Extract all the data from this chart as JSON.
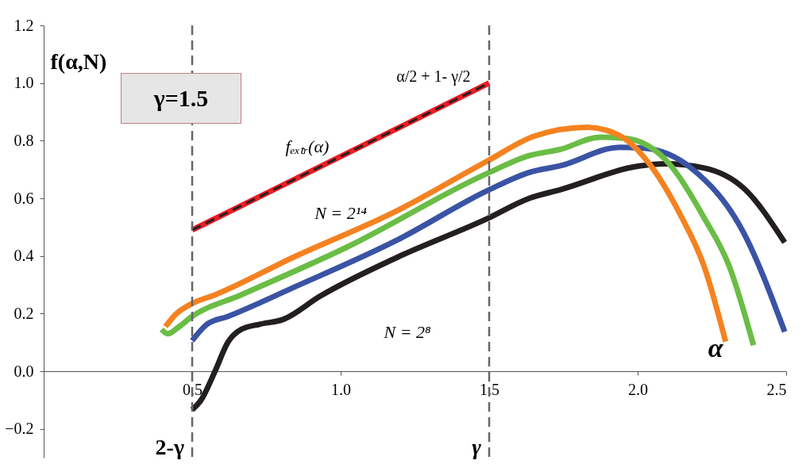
{
  "chart_data": {
    "type": "line",
    "ylabel": "f(α,N)",
    "xlabel": "α",
    "xlim": [
      0,
      2.5
    ],
    "ylim": [
      -0.3,
      1.2
    ],
    "xticks": [
      0.5,
      {
        "value": 1,
        "label": "1.0"
      },
      1.5,
      {
        "value": 2,
        "label": "2.0"
      },
      2.5
    ],
    "yticks": [
      {
        "value": -0.2,
        "label": "−0.2"
      },
      {
        "value": 0,
        "label": "0.0"
      },
      0.2,
      0.4,
      0.6,
      0.8,
      {
        "value": 1,
        "label": "1.0"
      },
      1.2
    ],
    "series": [
      {
        "color": "#231f20",
        "x": [
          0.5,
          0.53,
          0.577,
          0.62,
          0.665,
          0.727,
          0.807,
          0.93,
          1.19,
          1.495,
          1.635,
          1.74,
          2.005,
          2.09,
          2.225,
          2.357,
          2.495
        ],
        "values": [
          -0.134,
          -0.1,
          0,
          0.1,
          0.145,
          0.163,
          0.18,
          0.26,
          0.395,
          0.53,
          0.6,
          0.63,
          0.712,
          0.72,
          0.705,
          0.635,
          0.447
        ]
      },
      {
        "color": "#3a53a4",
        "x": [
          0.5,
          0.55,
          0.62,
          0.84,
          1.19,
          1.495,
          1.635,
          1.74,
          1.94,
          2.02,
          2.18,
          2.357,
          2.495
        ],
        "values": [
          0.106,
          0.163,
          0.19,
          0.29,
          0.455,
          0.627,
          0.69,
          0.713,
          0.777,
          0.774,
          0.705,
          0.48,
          0.137
        ]
      },
      {
        "color": "#6abd45",
        "x": [
          0.397,
          0.418,
          0.45,
          0.5,
          0.665,
          1.02,
          1.495,
          1.635,
          1.74,
          1.873,
          1.96,
          2.09,
          2.225,
          2.31,
          2.39
        ],
        "values": [
          0.145,
          0.13,
          0.15,
          0.19,
          0.265,
          0.43,
          0.687,
          0.748,
          0.77,
          0.812,
          0.808,
          0.738,
          0.53,
          0.36,
          0.09
        ]
      },
      {
        "color": "#f58220",
        "x": [
          0.41,
          0.444,
          0.5,
          0.577,
          0.84,
          1.19,
          1.495,
          1.653,
          1.83,
          1.935,
          2.05,
          2.14,
          2.225,
          2.296
        ],
        "values": [
          0.155,
          0.197,
          0.235,
          0.265,
          0.395,
          0.557,
          0.73,
          0.816,
          0.846,
          0.82,
          0.705,
          0.55,
          0.36,
          0.103
        ]
      },
      {
        "color": "#ed1c24",
        "x": [
          0.5,
          1.5
        ],
        "values": [
          0.49,
          1.0
        ]
      },
      {
        "color": "#231f20",
        "line_style": "dashed",
        "x": [
          0.5,
          1.5
        ],
        "values": [
          0.49,
          1.0
        ]
      }
    ],
    "ref_lines": [
      {
        "axis": "x",
        "value": 0.5,
        "label": "2-γ",
        "color": "#666666",
        "line_style": "dashed"
      },
      {
        "axis": "x",
        "value": 1.5,
        "label": "γ",
        "color": "#666666",
        "line_style": "dashed"
      }
    ],
    "annotations": [
      "γ=1.5",
      "α/2 + 1- γ/2",
      "fₑₓₜᵣ(α)",
      "N = 2¹⁴",
      "N = 2⁸"
    ]
  }
}
